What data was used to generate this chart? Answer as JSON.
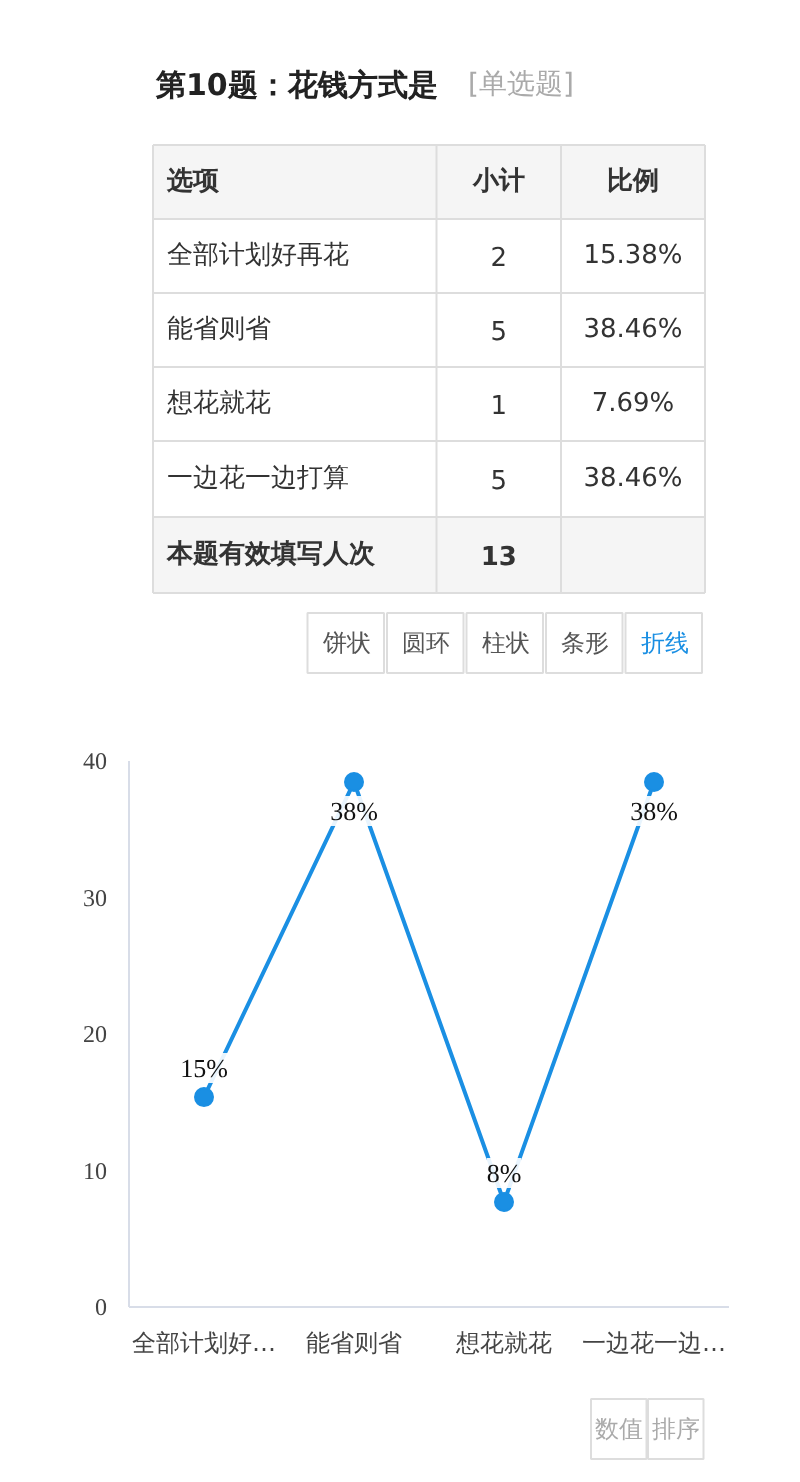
{
  "chart_data": [
    {
      "type": "other",
      "title": "第10题：花钱方式是",
      "subtitle": "[单选题]",
      "annotations": [
        "选项",
        "小计",
        "比例",
        "全部计划好再花",
        "2",
        "15.38%",
        "能省则省",
        "5",
        "38.46%",
        "想花就花",
        "1",
        "7.69%",
        "一边花一边打算",
        "5",
        "38.46%",
        "本题有效填写人次",
        "13"
      ]
    },
    {
      "type": "line",
      "categories": [
        "全部计划好…",
        "能省则省",
        "想花就花",
        "一边花一边…"
      ],
      "values": [
        15.38,
        38.46,
        7.69,
        38.46
      ],
      "value_labels": [
        "15%",
        "38%",
        "8%",
        "38%"
      ],
      "color": "#1a8fe3",
      "marker": "circle",
      "ylim": [
        0,
        40
      ],
      "yticks": [
        0,
        10,
        20,
        30,
        40
      ],
      "grid": false,
      "annotations": [
        "饼状",
        "圆环",
        "柱状",
        "条形",
        "折线",
        "数值",
        "排序"
      ]
    }
  ]
}
